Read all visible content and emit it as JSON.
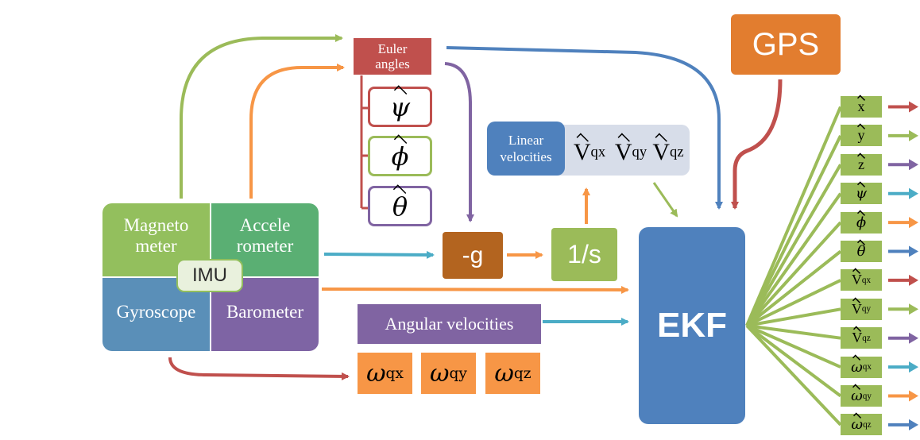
{
  "imu": {
    "magnetometer": "Magneto meter",
    "accelerometer": "Accele rometer",
    "gyroscope": "Gyroscope",
    "barometer": "Barometer",
    "center": "IMU"
  },
  "euler": {
    "title": "Euler angles",
    "items": [
      "ψ",
      "ϕ",
      "θ"
    ]
  },
  "linear": {
    "title": "Linear velocities",
    "items": [
      {
        "sym": "V",
        "sub": "qx"
      },
      {
        "sym": "V",
        "sub": "qy"
      },
      {
        "sym": "V",
        "sub": "qz"
      }
    ]
  },
  "angular": {
    "title": "Angular velocities",
    "items": [
      {
        "sym": "ω",
        "sub": "qx"
      },
      {
        "sym": "ω",
        "sub": "qy"
      },
      {
        "sym": "ω",
        "sub": "qz"
      }
    ]
  },
  "neg_g": "-g",
  "integrator": "1/s",
  "gps": "GPS",
  "ekf": "EKF",
  "outputs": [
    {
      "sym": "x",
      "sub": "",
      "color": "#c0504d"
    },
    {
      "sym": "y",
      "sub": "",
      "color": "#9bbb59"
    },
    {
      "sym": "z",
      "sub": "",
      "color": "#8064a2"
    },
    {
      "sym": "ψ",
      "sub": "",
      "color": "#4bacc6"
    },
    {
      "sym": "ϕ",
      "sub": "",
      "color": "#f79646"
    },
    {
      "sym": "θ",
      "sub": "",
      "color": "#4f81bd"
    },
    {
      "sym": "V",
      "sub": "qx",
      "color": "#c0504d"
    },
    {
      "sym": "V",
      "sub": "qy",
      "color": "#9bbb59"
    },
    {
      "sym": "V",
      "sub": "qz",
      "color": "#8064a2"
    },
    {
      "sym": "ω",
      "sub": "qx",
      "color": "#4bacc6"
    },
    {
      "sym": "ω",
      "sub": "qy",
      "color": "#f79646"
    },
    {
      "sym": "ω",
      "sub": "qz",
      "color": "#4f81bd"
    }
  ],
  "colors": {
    "green": "#9bbb59",
    "imu_green": "#93bf5d",
    "accel_green": "#5aaf73",
    "gyro_blue": "#5a8fb8",
    "baro_purple": "#7e64a4",
    "euler_red": "#c0504d",
    "orange": "#f79646",
    "neg_g_brown": "#b3641f",
    "blue": "#4f81bd",
    "cyan": "#4bacc6",
    "purple": "#8064a2",
    "ekf_blue": "#4f81bd",
    "gps_orange": "#e27d2f",
    "linear_blue": "#4f81bd",
    "linear_bg": "#d7dde9"
  }
}
